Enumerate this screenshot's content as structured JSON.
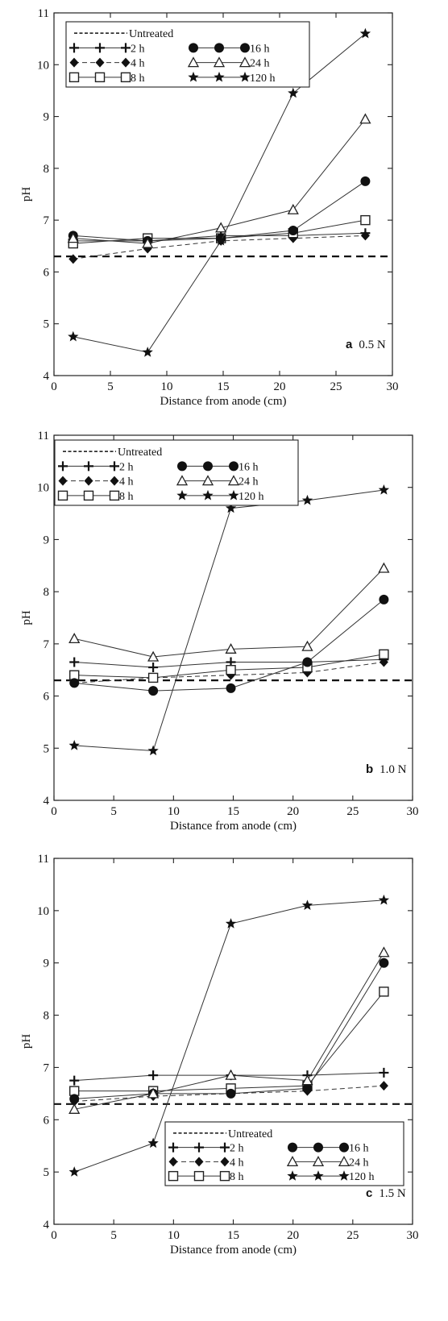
{
  "chart_data": [
    {
      "type": "line",
      "panel_letter": "a",
      "panel_text": "0.5 N",
      "xlabel": "Distance from anode (cm)",
      "ylabel": "pH",
      "xlim": [
        0,
        30
      ],
      "ylim": [
        4,
        11
      ],
      "xticks": [
        "0",
        "5",
        "10",
        "15",
        "20",
        "25",
        "30"
      ],
      "yticks": [
        "4",
        "5",
        "6",
        "7",
        "8",
        "9",
        "10",
        "11"
      ],
      "legend_position": "top-left",
      "untreated": {
        "name": "Untreated",
        "y": 6.3
      },
      "x": [
        1.7,
        8.3,
        14.8,
        21.2,
        27.6
      ],
      "series": [
        {
          "name": "2 h",
          "marker": "plus",
          "values": [
            6.6,
            6.6,
            6.7,
            6.7,
            6.75
          ]
        },
        {
          "name": "4 h",
          "marker": "diamond",
          "values": [
            6.25,
            6.45,
            6.6,
            6.65,
            6.7
          ]
        },
        {
          "name": "8 h",
          "marker": "square",
          "values": [
            6.55,
            6.65,
            6.65,
            6.75,
            7.0
          ]
        },
        {
          "name": "16 h",
          "marker": "circle",
          "values": [
            6.7,
            6.6,
            6.65,
            6.8,
            7.75
          ]
        },
        {
          "name": "24 h",
          "marker": "triangle",
          "values": [
            6.65,
            6.55,
            6.85,
            7.2,
            8.95
          ]
        },
        {
          "name": "120 h",
          "marker": "star",
          "values": [
            4.75,
            4.45,
            6.6,
            9.45,
            10.6
          ]
        }
      ]
    },
    {
      "type": "line",
      "panel_letter": "b",
      "panel_text": "1.0 N",
      "xlabel": "Distance from anode (cm)",
      "ylabel": "pH",
      "xlim": [
        0,
        30
      ],
      "ylim": [
        4,
        11
      ],
      "xticks": [
        "0",
        "5",
        "10",
        "15",
        "20",
        "25",
        "30"
      ],
      "yticks": [
        "4",
        "5",
        "6",
        "7",
        "8",
        "9",
        "10",
        "11"
      ],
      "legend_position": "top-left",
      "untreated": {
        "name": "Untreated",
        "y": 6.3
      },
      "x": [
        1.7,
        8.3,
        14.8,
        21.2,
        27.6
      ],
      "series": [
        {
          "name": "2 h",
          "marker": "plus",
          "values": [
            6.65,
            6.55,
            6.65,
            6.65,
            6.7
          ]
        },
        {
          "name": "4 h",
          "marker": "diamond",
          "values": [
            6.25,
            6.35,
            6.4,
            6.45,
            6.65
          ]
        },
        {
          "name": "8 h",
          "marker": "square",
          "values": [
            6.4,
            6.35,
            6.5,
            6.55,
            6.8
          ]
        },
        {
          "name": "16 h",
          "marker": "circle",
          "values": [
            6.25,
            6.1,
            6.15,
            6.65,
            7.85
          ]
        },
        {
          "name": "24 h",
          "marker": "triangle",
          "values": [
            7.1,
            6.75,
            6.9,
            6.95,
            8.45
          ]
        },
        {
          "name": "120 h",
          "marker": "star",
          "values": [
            5.05,
            4.95,
            9.6,
            9.75,
            9.95
          ]
        }
      ]
    },
    {
      "type": "line",
      "panel_letter": "c",
      "panel_text": "1.5 N",
      "xlabel": "Distance from anode (cm)",
      "ylabel": "pH",
      "xlim": [
        0,
        30
      ],
      "ylim": [
        4,
        11
      ],
      "xticks": [
        "0",
        "5",
        "10",
        "15",
        "20",
        "25",
        "30"
      ],
      "yticks": [
        "4",
        "5",
        "6",
        "7",
        "8",
        "9",
        "10",
        "11"
      ],
      "legend_position": "bottom-right",
      "untreated": {
        "name": "Untreated",
        "y": 6.3
      },
      "x": [
        1.7,
        8.3,
        14.8,
        21.2,
        27.6
      ],
      "series": [
        {
          "name": "2 h",
          "marker": "plus",
          "values": [
            6.75,
            6.85,
            6.85,
            6.85,
            6.9
          ]
        },
        {
          "name": "4 h",
          "marker": "diamond",
          "values": [
            6.35,
            6.45,
            6.5,
            6.55,
            6.65
          ]
        },
        {
          "name": "8 h",
          "marker": "square",
          "values": [
            6.55,
            6.55,
            6.6,
            6.65,
            8.45
          ]
        },
        {
          "name": "16 h",
          "marker": "circle",
          "values": [
            6.4,
            6.5,
            6.5,
            6.6,
            9.0
          ]
        },
        {
          "name": "24 h",
          "marker": "triangle",
          "values": [
            6.2,
            6.5,
            6.85,
            6.75,
            9.2
          ]
        },
        {
          "name": "120 h",
          "marker": "star",
          "values": [
            5.0,
            5.55,
            9.75,
            10.1,
            10.2
          ]
        }
      ]
    }
  ]
}
